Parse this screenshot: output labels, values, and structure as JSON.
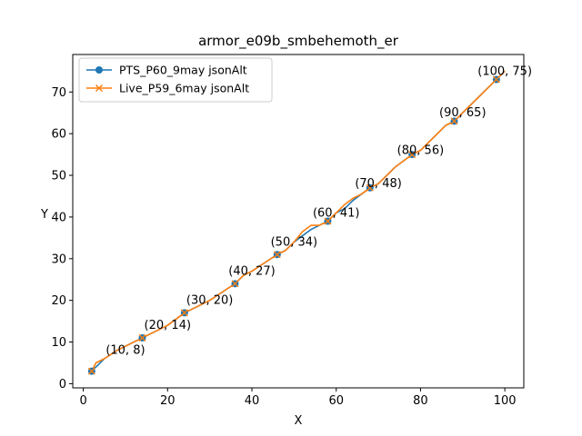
{
  "chart_data": {
    "type": "line",
    "title": "armor_e09b_smbehemoth_er",
    "xlabel": "X",
    "ylabel": "Y",
    "xlim": [
      -2.5,
      104.5
    ],
    "ylim": [
      -1,
      79
    ],
    "xticks": [
      0,
      20,
      40,
      60,
      80,
      100
    ],
    "yticks": [
      0,
      10,
      20,
      30,
      40,
      50,
      60,
      70
    ],
    "legend_position": "upper-left",
    "series": [
      {
        "name": "PTS_P60_9may jsonAlt",
        "color": "#1f77b4",
        "marker": "circle",
        "x": [
          2,
          3,
          5,
          8,
          11,
          14,
          17,
          20,
          22,
          24,
          27,
          30,
          33,
          36,
          38,
          40,
          43,
          46,
          48,
          50,
          52,
          54,
          56,
          58,
          60,
          62,
          64,
          66,
          68,
          70,
          72,
          74,
          76,
          78,
          80,
          82,
          84,
          86,
          88,
          90,
          92,
          94,
          96,
          98,
          100
        ],
        "y": [
          3,
          4,
          6,
          8,
          9.5,
          11,
          12.5,
          14,
          15.5,
          17,
          18.5,
          20,
          22,
          24,
          26,
          27,
          29,
          31,
          32,
          34,
          35.5,
          37,
          38,
          39,
          41,
          42,
          44,
          45.5,
          47,
          48,
          50,
          52,
          53.5,
          55,
          56,
          58,
          60,
          62,
          63,
          65,
          67,
          69,
          71,
          73,
          75
        ],
        "marker_x": [
          2,
          14,
          24,
          36,
          46,
          58,
          68,
          78,
          88,
          98
        ],
        "marker_y": [
          3,
          11,
          17,
          24,
          31,
          39,
          47,
          55,
          63,
          73
        ]
      },
      {
        "name": "Live_P59_6may jsonAlt",
        "color": "#ff7f0e",
        "marker": "x",
        "x": [
          2,
          3,
          5,
          8,
          11,
          14,
          17,
          20,
          22,
          24,
          27,
          30,
          33,
          36,
          38,
          40,
          43,
          46,
          48,
          50,
          52,
          54,
          56,
          58,
          60,
          62,
          64,
          66,
          68,
          70,
          72,
          74,
          76,
          78,
          80,
          82,
          84,
          86,
          88,
          90,
          92,
          94,
          96,
          98,
          100
        ],
        "y": [
          3,
          5,
          6,
          8,
          9.5,
          11,
          12.5,
          14,
          15.5,
          17,
          18.5,
          20,
          22,
          24,
          26,
          27,
          29,
          31,
          32,
          34,
          36.5,
          38,
          38,
          39,
          41,
          43,
          44.5,
          45.5,
          47,
          48,
          50,
          52,
          53.5,
          55,
          56,
          58,
          60,
          62,
          63,
          65,
          67,
          69,
          71,
          73,
          75
        ],
        "marker_x": [
          2,
          14,
          24,
          36,
          46,
          58,
          68,
          78,
          88,
          98
        ],
        "marker_y": [
          3,
          11,
          17,
          24,
          31,
          39,
          47,
          55,
          63,
          73
        ]
      }
    ],
    "annotations": [
      {
        "x": 10,
        "y": 8,
        "text": "(10, 8)"
      },
      {
        "x": 20,
        "y": 14,
        "text": "(20, 14)"
      },
      {
        "x": 30,
        "y": 20,
        "text": "(30, 20)"
      },
      {
        "x": 40,
        "y": 27,
        "text": "(40, 27)"
      },
      {
        "x": 50,
        "y": 34,
        "text": "(50, 34)"
      },
      {
        "x": 60,
        "y": 41,
        "text": "(60, 41)"
      },
      {
        "x": 70,
        "y": 48,
        "text": "(70, 48)"
      },
      {
        "x": 80,
        "y": 56,
        "text": "(80, 56)"
      },
      {
        "x": 90,
        "y": 65,
        "text": "(90, 65)"
      },
      {
        "x": 100,
        "y": 75,
        "text": "(100, 75)"
      }
    ]
  }
}
